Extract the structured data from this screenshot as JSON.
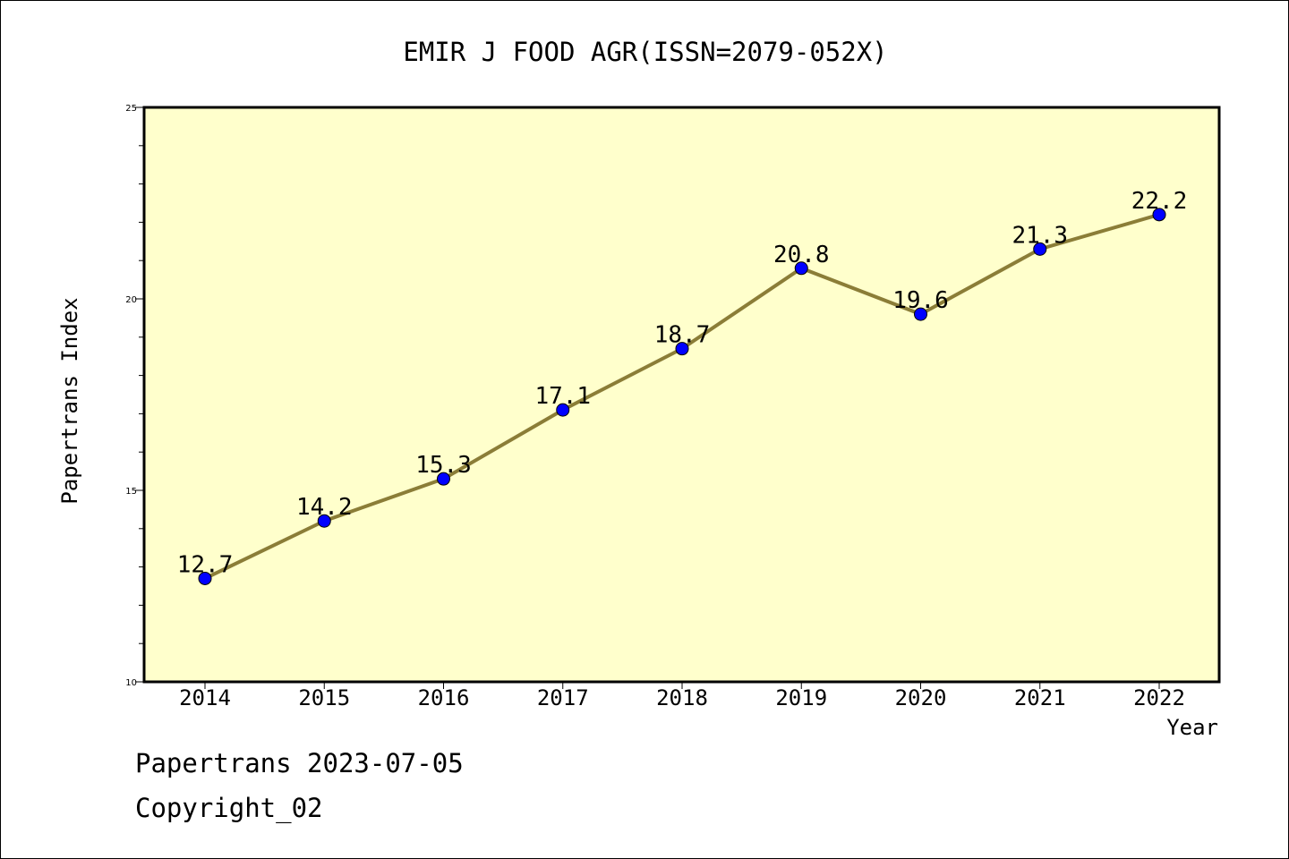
{
  "chart_data": {
    "type": "line",
    "title": "EMIR J FOOD AGR(ISSN=2079-052X)",
    "xlabel": "Year",
    "ylabel": "Papertrans Index",
    "categories": [
      "2014",
      "2015",
      "2016",
      "2017",
      "2018",
      "2019",
      "2020",
      "2021",
      "2022"
    ],
    "series": [
      {
        "values": [
          12.7,
          14.2,
          15.3,
          17.1,
          18.7,
          20.8,
          19.6,
          21.3,
          22.2
        ]
      }
    ],
    "data_labels": [
      "12.7",
      "14.2",
      "15.3",
      "17.1",
      "18.7",
      "20.8",
      "19.6",
      "21.3",
      "22.2"
    ],
    "ylim": [
      10,
      25
    ],
    "y_ticks": [
      "10",
      "15",
      "20",
      "25"
    ],
    "grid": false,
    "colors": {
      "plot_background": "#ffffcc",
      "line": "#8b7d37",
      "marker": "#0000ff"
    }
  },
  "footer": {
    "line1": "Papertrans 2023-07-05",
    "line2": "Copyright_02"
  }
}
